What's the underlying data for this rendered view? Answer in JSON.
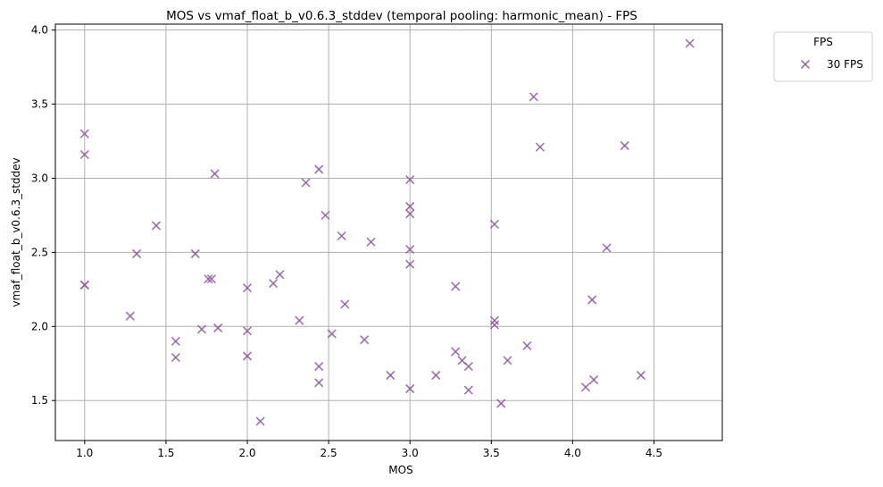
{
  "chart_data": {
    "type": "scatter",
    "title": "MOS vs vmaf_float_b_v0.6.3_stddev (temporal pooling: harmonic_mean) - FPS",
    "xlabel": "MOS",
    "ylabel": "vmaf_float_b_v0.6.3_stddev",
    "xlim": [
      0.82,
      4.92
    ],
    "ylim": [
      1.23,
      4.04
    ],
    "xticks": [
      1.0,
      1.5,
      2.0,
      2.5,
      3.0,
      3.5,
      4.0,
      4.5
    ],
    "xtick_labels": [
      "1.0",
      "1.5",
      "2.0",
      "2.5",
      "3.0",
      "3.5",
      "4.0",
      "4.5"
    ],
    "yticks": [
      1.5,
      2.0,
      2.5,
      3.0,
      3.5,
      4.0
    ],
    "ytick_labels": [
      "1.5",
      "2.0",
      "2.5",
      "3.0",
      "3.5",
      "4.0"
    ],
    "grid": true,
    "legend": {
      "title": "FPS",
      "placement": "outside-top-right",
      "entries": [
        "30 FPS"
      ]
    },
    "series": [
      {
        "name": "30 FPS",
        "color": "#8e5a9e",
        "marker": "x",
        "points": [
          [
            1.0,
            3.3
          ],
          [
            1.0,
            3.16
          ],
          [
            1.0,
            2.28
          ],
          [
            1.0,
            2.28
          ],
          [
            1.28,
            2.07
          ],
          [
            1.32,
            2.49
          ],
          [
            1.44,
            2.68
          ],
          [
            1.56,
            1.9
          ],
          [
            1.56,
            1.79
          ],
          [
            1.68,
            2.49
          ],
          [
            1.72,
            1.98
          ],
          [
            1.76,
            2.32
          ],
          [
            1.78,
            2.32
          ],
          [
            1.8,
            3.03
          ],
          [
            1.82,
            1.99
          ],
          [
            2.0,
            2.26
          ],
          [
            2.0,
            1.97
          ],
          [
            2.0,
            1.8
          ],
          [
            2.08,
            1.36
          ],
          [
            2.16,
            2.29
          ],
          [
            2.2,
            2.35
          ],
          [
            2.32,
            2.04
          ],
          [
            2.36,
            2.97
          ],
          [
            2.44,
            3.06
          ],
          [
            2.44,
            1.73
          ],
          [
            2.44,
            1.62
          ],
          [
            2.48,
            2.75
          ],
          [
            2.52,
            1.95
          ],
          [
            2.58,
            2.61
          ],
          [
            2.6,
            2.15
          ],
          [
            2.72,
            1.91
          ],
          [
            2.76,
            2.57
          ],
          [
            2.88,
            1.67
          ],
          [
            3.0,
            2.99
          ],
          [
            3.0,
            2.81
          ],
          [
            3.0,
            2.76
          ],
          [
            3.0,
            2.52
          ],
          [
            3.0,
            2.42
          ],
          [
            3.0,
            1.58
          ],
          [
            3.16,
            1.67
          ],
          [
            3.28,
            2.27
          ],
          [
            3.28,
            1.83
          ],
          [
            3.32,
            1.77
          ],
          [
            3.36,
            1.73
          ],
          [
            3.36,
            1.57
          ],
          [
            3.52,
            2.69
          ],
          [
            3.52,
            2.04
          ],
          [
            3.52,
            2.01
          ],
          [
            3.56,
            1.48
          ],
          [
            3.6,
            1.77
          ],
          [
            3.72,
            1.87
          ],
          [
            3.76,
            3.55
          ],
          [
            3.8,
            3.21
          ],
          [
            4.08,
            1.59
          ],
          [
            4.12,
            2.18
          ],
          [
            4.13,
            1.64
          ],
          [
            4.21,
            2.53
          ],
          [
            4.32,
            3.22
          ],
          [
            4.42,
            1.67
          ],
          [
            4.72,
            3.91
          ]
        ]
      }
    ]
  }
}
